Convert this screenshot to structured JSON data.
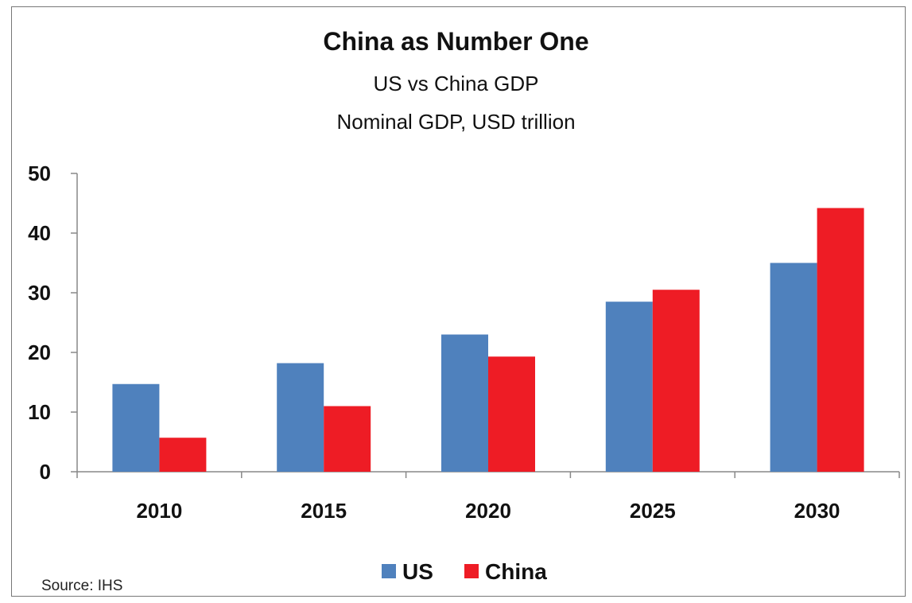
{
  "chart_data": {
    "type": "bar",
    "title": "China as Number One",
    "subtitle": "US vs China GDP",
    "subtitle2": "Nominal GDP, USD trillion",
    "categories": [
      "2010",
      "2015",
      "2020",
      "2025",
      "2030"
    ],
    "series": [
      {
        "name": "US",
        "color": "#4f81bd",
        "values": [
          14.7,
          18.2,
          23.0,
          28.5,
          35.0
        ]
      },
      {
        "name": "China",
        "color": "#ee1c25",
        "values": [
          5.7,
          11.0,
          19.3,
          30.5,
          44.2
        ]
      }
    ],
    "ylim": [
      0,
      50
    ],
    "yticks": [
      "0",
      "10",
      "20",
      "30",
      "40",
      "50"
    ],
    "grid": false,
    "legend_position": "bottom",
    "xlabel": "",
    "ylabel": ""
  },
  "source": "Source: IHS"
}
